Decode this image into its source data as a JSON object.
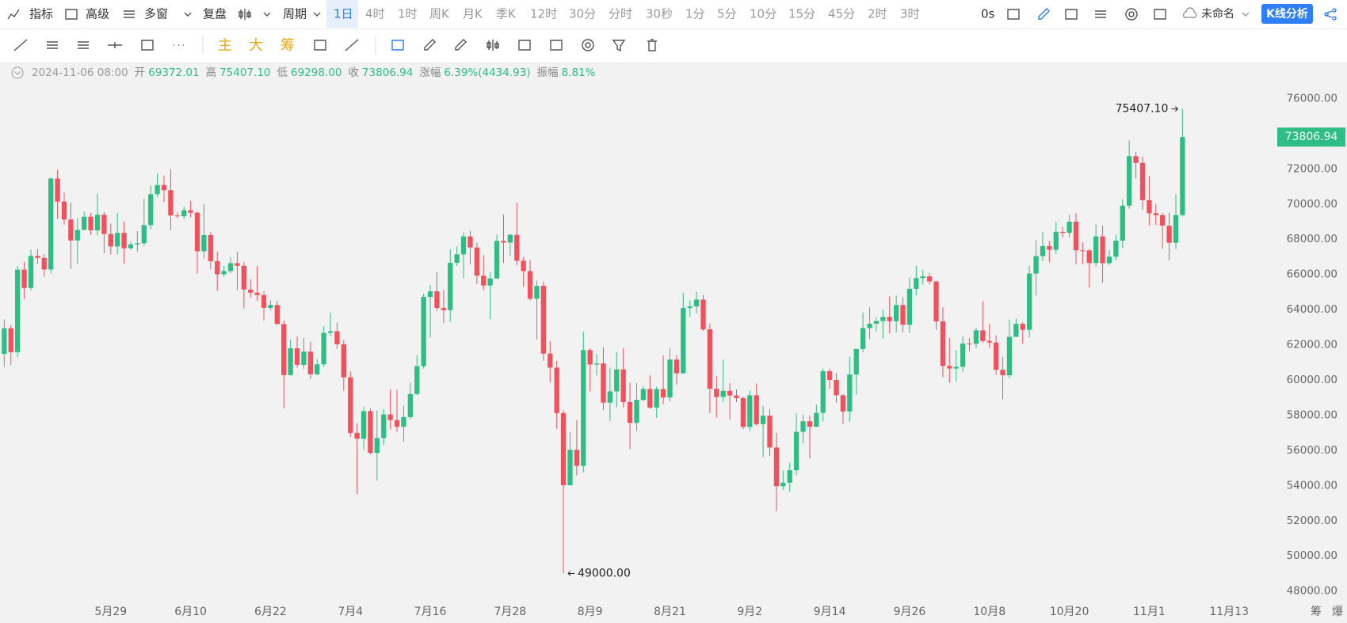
{
  "toolbar": {
    "left": [
      "指标",
      "高级",
      "多窗",
      "复盘"
    ],
    "period": "周期",
    "periods": [
      "1日",
      "4时",
      "1时",
      "周K",
      "月K",
      "季K",
      "12时",
      "30分",
      "分时",
      "30秒",
      "1分",
      "5分",
      "10分",
      "15分",
      "45分",
      "2时",
      "3时"
    ],
    "timer": "0s",
    "file": "未命名",
    "analysis": "K线分析"
  },
  "drawing_toolbar": {
    "overlays": [
      "主",
      "大",
      "筹"
    ]
  },
  "info": {
    "date": "2024-11-06 08:00",
    "items": [
      {
        "label": "开",
        "value": "69372.01"
      },
      {
        "label": "高",
        "value": "75407.10"
      },
      {
        "label": "低",
        "value": "69298.00"
      },
      {
        "label": "收",
        "value": "73806.94"
      },
      {
        "label": "涨幅",
        "value": "6.39%(4434.93)"
      },
      {
        "label": "振幅",
        "value": "8.81%"
      }
    ]
  },
  "chart_data": {
    "type": "candlestick",
    "up_color": "#2ebd85",
    "down_color": "#f0515d",
    "grid": false,
    "open": [
      61480,
      62940,
      61580,
      66270,
      65230,
      67050,
      66940,
      66280,
      71450,
      70140,
      69120,
      67930,
      68530,
      69280,
      68510,
      69390,
      68300,
      67590,
      68360,
      67490,
      67710,
      67770,
      68800,
      70560,
      71080,
      70790,
      69350,
      69310,
      69650,
      69510,
      67320,
      68240,
      66750,
      66010,
      66190,
      66640,
      66490,
      65140,
      64960,
      64830,
      64100,
      64260,
      63180,
      60280,
      61800,
      60860,
      61610,
      60320,
      60890,
      62680,
      62770,
      62030,
      60150,
      56990,
      56660,
      58230,
      55850,
      56700,
      58040,
      57720,
      57340,
      57890,
      59200,
      60790,
      64720,
      65040,
      64090,
      63970,
      66660,
      67140,
      68160,
      67530,
      65930,
      65370,
      65770,
      67910,
      67810,
      68250,
      66780,
      66190,
      64620,
      65350,
      61500,
      60700,
      58120,
      54020,
      56030,
      55120,
      61700,
      60880,
      60940,
      58710,
      59350,
      60600,
      58740,
      57560,
      58870,
      59490,
      58430,
      59490,
      59010,
      61160,
      60380,
      64090,
      64180,
      64570,
      62880,
      59500,
      59030,
      59380,
      59120,
      58970,
      57330,
      59130,
      57490,
      57970,
      56160,
      53960,
      54160,
      54870,
      57050,
      57650,
      57340,
      58130,
      60500,
      60000,
      59130,
      58210,
      60310,
      61760,
      62950,
      63200,
      63350,
      63580,
      63340,
      64260,
      63140,
      65180,
      65790,
      65890,
      65600,
      63330,
      60800,
      60650,
      60750,
      62070,
      62060,
      62820,
      62220,
      62130,
      60580,
      60270,
      62450,
      63190,
      62850,
      66050,
      67040,
      67610,
      67400,
      68420,
      68360,
      69000,
      67370,
      67360,
      66650,
      68160,
      66640,
      67010,
      67920,
      69910,
      72720,
      72340,
      70220,
      69480,
      69370,
      68770,
      67800,
      69372.01
    ],
    "high": [
      63450,
      63130,
      66480,
      66700,
      67400,
      67450,
      67150,
      71520,
      71960,
      70650,
      70090,
      69200,
      69570,
      69500,
      70600,
      69550,
      68900,
      69500,
      69000,
      67850,
      68450,
      70290,
      71060,
      71750,
      71620,
      71980,
      69560,
      69850,
      70180,
      69560,
      70000,
      68420,
      67300,
      66480,
      66990,
      67300,
      66700,
      65730,
      66480,
      65060,
      64520,
      64500,
      63360,
      62300,
      62480,
      62380,
      62180,
      61200,
      63050,
      63840,
      63270,
      62270,
      60500,
      57550,
      58480,
      58380,
      58270,
      58340,
      59470,
      59450,
      58540,
      59850,
      61420,
      64900,
      65390,
      66130,
      65110,
      67440,
      67600,
      68380,
      68480,
      67800,
      67100,
      66150,
      68240,
      69400,
      68320,
      70080,
      66990,
      66820,
      65650,
      65590,
      62200,
      61100,
      58290,
      57040,
      57720,
      62750,
      61800,
      61470,
      61860,
      60700,
      61580,
      61800,
      59850,
      59820,
      59650,
      60270,
      59620,
      61400,
      61830,
      61420,
      64950,
      64520,
      65000,
      64830,
      63210,
      60230,
      61170,
      59820,
      59460,
      59050,
      59410,
      59800,
      58520,
      58330,
      56990,
      54850,
      55300,
      58100,
      58040,
      57980,
      58600,
      60650,
      60640,
      60390,
      59200,
      61320,
      61780,
      63850,
      64130,
      63560,
      64000,
      64750,
      64800,
      64700,
      65840,
      66500,
      66260,
      66080,
      65620,
      64130,
      62390,
      61690,
      62480,
      62370,
      62980,
      64480,
      63200,
      62540,
      61320,
      63420,
      63480,
      63280,
      66500,
      67950,
      68420,
      67900,
      68970,
      68690,
      69400,
      69500,
      67830,
      67450,
      68850,
      68780,
      67400,
      68250,
      70270,
      73620,
      72960,
      72700,
      71600,
      70000,
      69500,
      69500,
      70570,
      75407.1
    ],
    "low": [
      60750,
      60860,
      61300,
      64600,
      65100,
      66600,
      65860,
      66050,
      69160,
      68830,
      66310,
      66600,
      68520,
      68250,
      68210,
      67200,
      67130,
      67120,
      66600,
      67390,
      67300,
      67610,
      68560,
      70390,
      70120,
      68510,
      69210,
      69140,
      69240,
      66050,
      66900,
      66300,
      65080,
      65860,
      66060,
      65100,
      64060,
      64690,
      64500,
      63380,
      63950,
      63160,
      58400,
      60250,
      60700,
      60620,
      60050,
      60270,
      60750,
      62500,
      61780,
      59400,
      56770,
      53500,
      56030,
      55770,
      54280,
      56300,
      57180,
      57050,
      56500,
      57760,
      59140,
      60660,
      62420,
      63920,
      63230,
      63300,
      66480,
      65780,
      66570,
      65460,
      65110,
      63450,
      65750,
      66650,
      67060,
      66530,
      65300,
      64520,
      62300,
      61100,
      59850,
      57220,
      49000,
      54000,
      54580,
      54750,
      59350,
      60250,
      58290,
      57650,
      58450,
      58430,
      56080,
      57100,
      58780,
      58350,
      57830,
      58620,
      58780,
      59750,
      60360,
      63590,
      63780,
      62790,
      58120,
      57860,
      58750,
      57770,
      58740,
      57200,
      57120,
      57410,
      55600,
      55680,
      52550,
      53750,
      53650,
      54590,
      56400,
      55550,
      57320,
      57640,
      59500,
      58700,
      57490,
      57610,
      59170,
      61570,
      62330,
      62760,
      62360,
      62650,
      62700,
      62700,
      62670,
      64800,
      65420,
      65420,
      62850,
      60160,
      59830,
      59910,
      60460,
      61630,
      61800,
      62120,
      61830,
      60300,
      58900,
      60100,
      62450,
      62050,
      62420,
      64800,
      66750,
      66690,
      67170,
      68100,
      68100,
      66570,
      66570,
      65260,
      66450,
      65520,
      66520,
      66800,
      67500,
      69730,
      71440,
      69680,
      68780,
      68800,
      67450,
      66800,
      67450,
      69298.0
    ],
    "close": [
      62940,
      61580,
      66270,
      65230,
      67050,
      66940,
      66280,
      71450,
      70140,
      69120,
      67930,
      68530,
      69280,
      68510,
      69390,
      68300,
      67590,
      68360,
      67490,
      67710,
      67770,
      68800,
      70560,
      71080,
      70790,
      69350,
      69310,
      69650,
      69510,
      67320,
      68240,
      66750,
      66010,
      66190,
      66640,
      66490,
      65140,
      64960,
      64830,
      64100,
      64260,
      63180,
      60280,
      61800,
      60860,
      61610,
      60320,
      60890,
      62680,
      62770,
      62030,
      60150,
      56990,
      56660,
      58230,
      55850,
      56700,
      58040,
      57720,
      57340,
      57890,
      59200,
      60790,
      64720,
      65040,
      64090,
      63970,
      66660,
      67140,
      68160,
      67530,
      65930,
      65370,
      65770,
      67910,
      67810,
      68250,
      66780,
      66190,
      64620,
      65350,
      61500,
      60700,
      58120,
      54020,
      56030,
      55120,
      61700,
      60880,
      60940,
      58710,
      59350,
      60600,
      58740,
      57560,
      58870,
      59490,
      58430,
      59490,
      59010,
      61160,
      60380,
      64090,
      64180,
      64570,
      62880,
      59500,
      59030,
      59380,
      59120,
      58970,
      57330,
      59130,
      57490,
      57970,
      56160,
      53960,
      54160,
      54870,
      57050,
      57650,
      57340,
      58130,
      60500,
      60000,
      59130,
      58210,
      60310,
      61760,
      62950,
      63200,
      63350,
      63580,
      63340,
      64260,
      63140,
      65180,
      65790,
      65890,
      65600,
      63330,
      60800,
      60650,
      60750,
      62070,
      62060,
      62820,
      62220,
      62130,
      60580,
      60270,
      62450,
      63190,
      62850,
      66050,
      67040,
      67610,
      67400,
      68420,
      68360,
      69000,
      67370,
      67360,
      66650,
      68160,
      66640,
      67010,
      67920,
      69910,
      72720,
      72340,
      70220,
      69480,
      69370,
      68770,
      67800,
      69370,
      73806.94
    ],
    "xlim": [
      -0.64,
      191
    ],
    "xticks": [
      {
        "value": 16,
        "label": "5月29"
      },
      {
        "value": 28,
        "label": "6月10"
      },
      {
        "value": 40,
        "label": "6月22"
      },
      {
        "value": 52,
        "label": "7月4"
      },
      {
        "value": 64,
        "label": "7月16"
      },
      {
        "value": 76,
        "label": "7月28"
      },
      {
        "value": 88,
        "label": "8月9"
      },
      {
        "value": 100,
        "label": "8月21"
      },
      {
        "value": 112,
        "label": "9月2"
      },
      {
        "value": 124,
        "label": "9月14"
      },
      {
        "value": 136,
        "label": "9月26"
      },
      {
        "value": 148,
        "label": "10月8"
      },
      {
        "value": 160,
        "label": "10月20"
      },
      {
        "value": 172,
        "label": "11月1"
      },
      {
        "value": 184,
        "label": "11月13"
      }
    ],
    "ylim": [
      47400,
      78000
    ],
    "yticks": [
      {
        "value": 48000,
        "label": "48000.00"
      },
      {
        "value": 50000,
        "label": "50000.00"
      },
      {
        "value": 52000,
        "label": "52000.00"
      },
      {
        "value": 54000,
        "label": "54000.00"
      },
      {
        "value": 56000,
        "label": "56000.00"
      },
      {
        "value": 58000,
        "label": "58000.00"
      },
      {
        "value": 60000,
        "label": "60000.00"
      },
      {
        "value": 62000,
        "label": "62000.00"
      },
      {
        "value": 64000,
        "label": "64000.00"
      },
      {
        "value": 66000,
        "label": "66000.00"
      },
      {
        "value": 68000,
        "label": "68000.00"
      },
      {
        "value": 70000,
        "label": "70000.00"
      },
      {
        "value": 72000,
        "label": "72000.00"
      },
      {
        "value": 74000,
        "label": "74000.00"
      },
      {
        "value": 76000,
        "label": "76000.00"
      }
    ],
    "last_price": {
      "value": 73806.94,
      "label": "73806.94"
    },
    "annotations": [
      {
        "x": 177,
        "value": 75407.1,
        "label": "75407.10",
        "side": "left"
      },
      {
        "x": 84,
        "value": 49000,
        "label": "49000.00",
        "side": "right"
      }
    ]
  },
  "footer": [
    "筹",
    "爆"
  ]
}
